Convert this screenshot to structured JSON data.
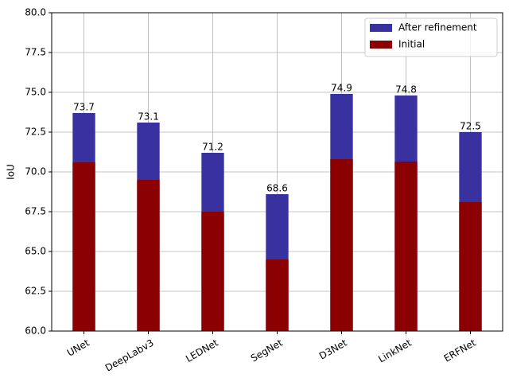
{
  "chart_data": {
    "type": "bar",
    "y_label": "IoU",
    "categories": [
      "UNet",
      "DeepLabv3",
      "LEDNet",
      "SegNet",
      "D3Net",
      "LinkNet",
      "ERFNet"
    ],
    "series": [
      {
        "name": "After refinement",
        "color": "#3a31a1",
        "values": [
          73.7,
          73.1,
          71.2,
          68.6,
          74.9,
          74.8,
          72.5
        ],
        "labels": true
      },
      {
        "name": "Initial",
        "color": "#8b0000",
        "values": [
          70.6,
          69.5,
          67.5,
          64.5,
          70.8,
          70.65,
          68.1
        ]
      }
    ],
    "ylim": [
      60,
      80
    ],
    "yticks": [
      {
        "value": 60,
        "label": "60.0"
      },
      62.5,
      {
        "value": 65,
        "label": "65.0"
      },
      67.5,
      {
        "value": 70,
        "label": "70.0"
      },
      72.5,
      {
        "value": 75,
        "label": "75.0"
      },
      77.5,
      {
        "value": 80,
        "label": "80.0"
      }
    ],
    "grid": true,
    "legend": "upper-right"
  }
}
